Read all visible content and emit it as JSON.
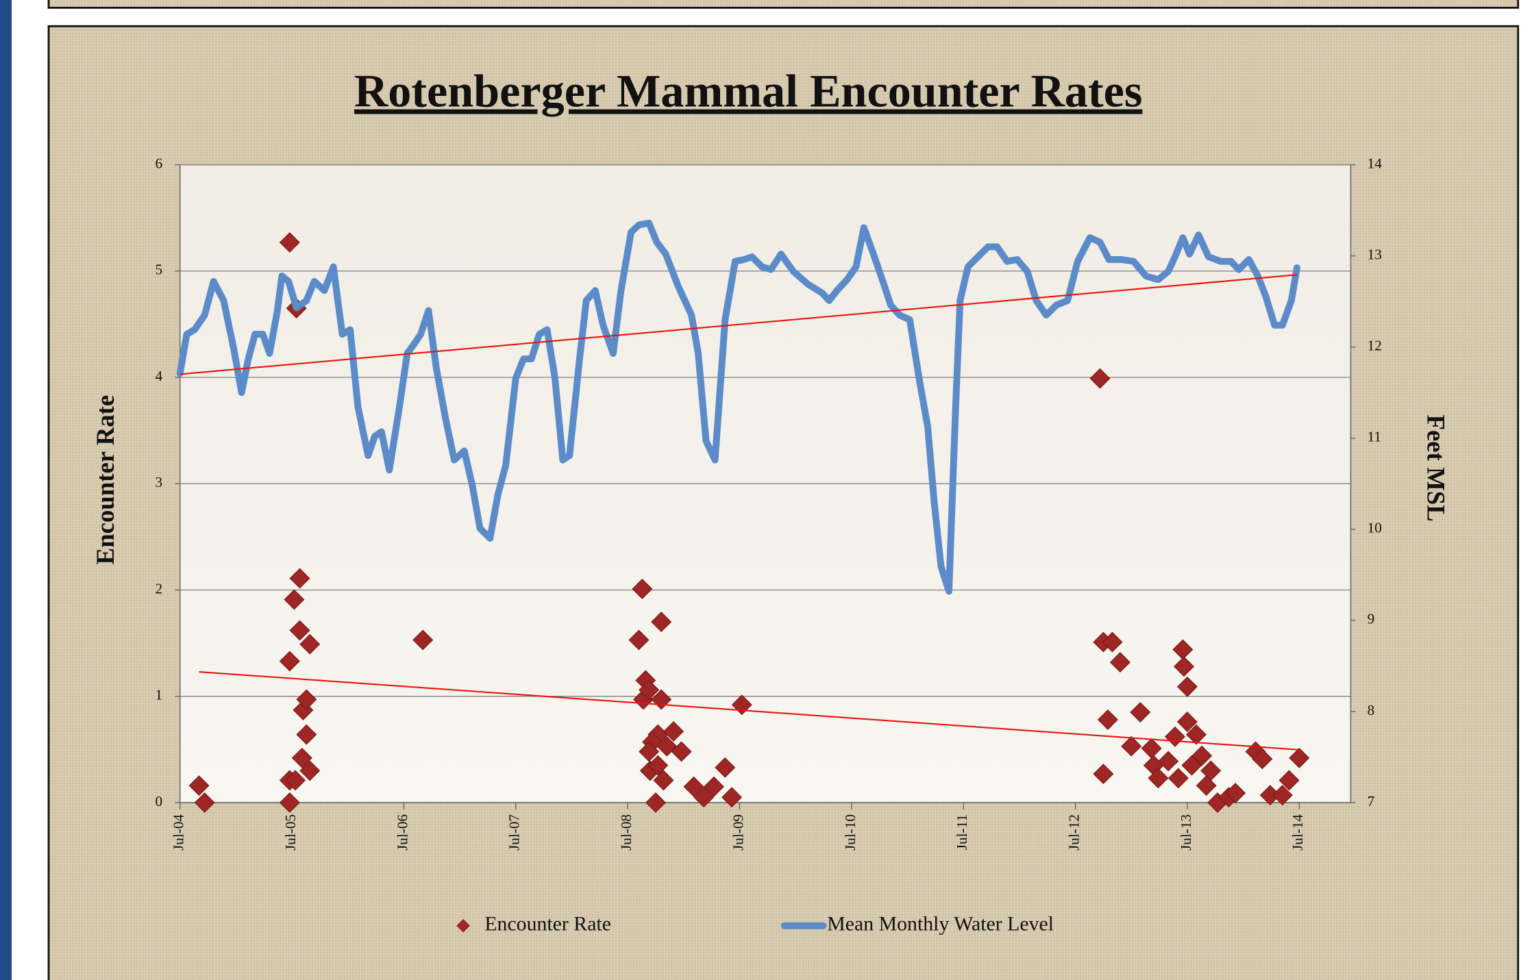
{
  "chart_data": {
    "type": "combo",
    "title": "Rotenberger Mammal Encounter Rates",
    "y_label": "Encounter Rate",
    "y2_label": "Feet MSL",
    "xlim": [
      2004.5,
      2014.96
    ],
    "xticks": [
      {
        "value": 2004.5,
        "label": "Jul-04"
      },
      {
        "value": 2005.5,
        "label": "Jul-05"
      },
      {
        "value": 2006.5,
        "label": "Jul-06"
      },
      {
        "value": 2007.5,
        "label": "Jul-07"
      },
      {
        "value": 2008.5,
        "label": "Jul-08"
      },
      {
        "value": 2009.5,
        "label": "Jul-09"
      },
      {
        "value": 2010.5,
        "label": "Jul-10"
      },
      {
        "value": 2011.5,
        "label": "Jul-11"
      },
      {
        "value": 2012.5,
        "label": "Jul-12"
      },
      {
        "value": 2013.5,
        "label": "Jul-13"
      },
      {
        "value": 2014.5,
        "label": "Jul-14"
      }
    ],
    "ylim": [
      0,
      6
    ],
    "yticks": [
      0,
      1,
      2,
      3,
      4,
      5,
      6
    ],
    "y2lim": [
      7,
      14
    ],
    "y2ticks": [
      7,
      8,
      9,
      10,
      11,
      12,
      13,
      14
    ],
    "grid": true,
    "trendline": true,
    "trendline_color": "#e8140c",
    "legend": "bottom",
    "series": [
      {
        "name": "Encounter Rate",
        "type": "scatter",
        "color": "#9e2624",
        "x": [
          2004.67,
          2004.72,
          2005.48,
          2005.54,
          2005.48,
          2005.48,
          2005.53,
          2005.59,
          2005.66,
          2005.63,
          2005.6,
          2005.63,
          2005.48,
          2005.66,
          2005.57,
          2005.52,
          2005.57,
          2006.67,
          2008.63,
          2008.6,
          2008.8,
          2008.66,
          2008.64,
          2008.69,
          2008.8,
          2008.77,
          2008.72,
          2008.69,
          2008.91,
          2008.98,
          2008.85,
          2008.7,
          2008.77,
          2008.82,
          2008.75,
          2009.09,
          2009.18,
          2009.27,
          2009.37,
          2009.43,
          2009.52,
          2012.72,
          2012.75,
          2012.75,
          2012.83,
          2012.9,
          2012.79,
          2013.08,
          2013.0,
          2013.18,
          2013.2,
          2013.24,
          2013.33,
          2013.42,
          2013.39,
          2013.46,
          2013.47,
          2013.5,
          2013.5,
          2013.58,
          2013.54,
          2013.63,
          2013.67,
          2013.71,
          2013.77,
          2013.87,
          2013.93,
          2014.11,
          2014.17,
          2014.24,
          2014.35,
          2014.41,
          2014.5
        ],
        "values": [
          0.16,
          0,
          5.27,
          4.65,
          0,
          0.21,
          0.21,
          0.42,
          0.3,
          0.64,
          0.87,
          0.97,
          1.33,
          1.49,
          1.62,
          1.91,
          2.11,
          1.53,
          2.01,
          1.53,
          1.7,
          1.15,
          0.97,
          1.06,
          0.97,
          0.64,
          0.57,
          0.48,
          0.67,
          0.48,
          0.53,
          0.3,
          0.35,
          0.21,
          0,
          0.15,
          0.05,
          0.15,
          0.33,
          0.05,
          0.92,
          3.99,
          0.27,
          1.51,
          1.51,
          1.32,
          0.78,
          0.85,
          0.53,
          0.51,
          0.35,
          0.23,
          0.39,
          0.23,
          0.62,
          1.44,
          1.28,
          1.09,
          0.76,
          0.64,
          0.35,
          0.44,
          0.16,
          0.3,
          0,
          0.05,
          0.09,
          0.48,
          0.41,
          0.07,
          0.07,
          0.21,
          0.42
        ]
      },
      {
        "name": "Mean Monthly Water Level",
        "type": "line",
        "axis": "y2",
        "color": "#5b8bc9",
        "x": [
          2004.5,
          2004.56,
          2004.63,
          2004.72,
          2004.8,
          2004.89,
          2004.98,
          2005.05,
          2005.11,
          2005.17,
          2005.24,
          2005.3,
          2005.37,
          2005.41,
          2005.47,
          2005.54,
          2005.63,
          2005.7,
          2005.79,
          2005.87,
          2005.95,
          2006.02,
          2006.09,
          2006.18,
          2006.24,
          2006.3,
          2006.37,
          2006.46,
          2006.53,
          2006.59,
          2006.65,
          2006.72,
          2006.79,
          2006.87,
          2006.95,
          2007.04,
          2007.11,
          2007.18,
          2007.27,
          2007.34,
          2007.41,
          2007.5,
          2007.57,
          2007.64,
          2007.71,
          2007.78,
          2007.85,
          2007.92,
          2007.98,
          2008.07,
          2008.13,
          2008.21,
          2008.28,
          2008.37,
          2008.44,
          2008.53,
          2008.6,
          2008.69,
          2008.76,
          2008.84,
          2008.95,
          2009.07,
          2009.13,
          2009.2,
          2009.28,
          2009.37,
          2009.46,
          2009.54,
          2009.61,
          2009.7,
          2009.78,
          2009.87,
          2009.98,
          2010.11,
          2010.24,
          2010.3,
          2010.37,
          2010.46,
          2010.54,
          2010.61,
          2010.69,
          2010.78,
          2010.85,
          2010.93,
          2011.02,
          2011.11,
          2011.18,
          2011.24,
          2011.3,
          2011.37,
          2011.43,
          2011.47,
          2011.54,
          2011.63,
          2011.72,
          2011.8,
          2011.89,
          2011.98,
          2012.07,
          2012.15,
          2012.24,
          2012.33,
          2012.43,
          2012.52,
          2012.63,
          2012.72,
          2012.8,
          2012.91,
          2013.02,
          2013.13,
          2013.24,
          2013.33,
          2013.39,
          2013.46,
          2013.52,
          2013.6,
          2013.69,
          2013.8,
          2013.89,
          2013.96,
          2014.05,
          2014.13,
          2014.2,
          2014.28,
          2014.35,
          2014.43,
          2014.48
        ],
        "values": [
          11.71,
          12.14,
          12.19,
          12.35,
          12.72,
          12.51,
          11.98,
          11.5,
          11.87,
          12.14,
          12.14,
          11.93,
          12.4,
          12.78,
          12.72,
          12.43,
          12.51,
          12.72,
          12.62,
          12.88,
          12.14,
          12.19,
          11.34,
          10.81,
          11.02,
          11.07,
          10.65,
          11.34,
          11.93,
          12.03,
          12.14,
          12.4,
          11.77,
          11.23,
          10.76,
          10.86,
          10.49,
          10.01,
          9.9,
          10.38,
          10.7,
          11.66,
          11.87,
          11.87,
          12.14,
          12.19,
          11.66,
          10.76,
          10.81,
          11.87,
          12.51,
          12.62,
          12.24,
          11.93,
          12.62,
          13.26,
          13.34,
          13.36,
          13.15,
          13.02,
          12.67,
          12.35,
          11.93,
          10.97,
          10.76,
          12.3,
          12.94,
          12.96,
          12.99,
          12.88,
          12.85,
          13.02,
          12.83,
          12.69,
          12.59,
          12.51,
          12.62,
          12.74,
          12.88,
          13.31,
          13.04,
          12.72,
          12.46,
          12.35,
          12.3,
          11.61,
          11.13,
          10.28,
          9.59,
          9.32,
          11.34,
          12.51,
          12.88,
          12.99,
          13.1,
          13.1,
          12.94,
          12.96,
          12.83,
          12.51,
          12.35,
          12.46,
          12.51,
          12.94,
          13.2,
          13.15,
          12.96,
          12.96,
          12.94,
          12.78,
          12.74,
          12.83,
          12.99,
          13.2,
          13.02,
          13.23,
          12.99,
          12.94,
          12.94,
          12.85,
          12.96,
          12.78,
          12.56,
          12.24,
          12.24,
          12.51,
          12.87
        ]
      }
    ]
  }
}
